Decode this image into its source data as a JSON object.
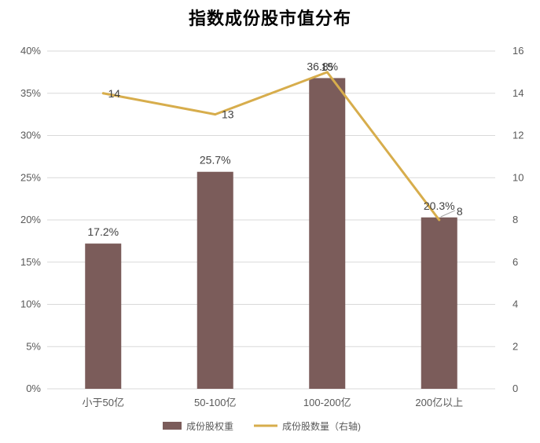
{
  "chart_data": {
    "type": "bar",
    "title": "指数成份股市值分布",
    "categories": [
      "小于50亿",
      "50-100亿",
      "100-200亿",
      "200亿以上"
    ],
    "series": [
      {
        "name": "成份股权重",
        "type": "bar",
        "axis": "left",
        "values": [
          17.2,
          25.7,
          36.8,
          20.3
        ],
        "labels": [
          "17.2%",
          "25.7%",
          "36.8%",
          "20.3%"
        ],
        "color": "#7b5c5a"
      },
      {
        "name": "成份股数量（右轴)",
        "type": "line",
        "axis": "right",
        "values": [
          14,
          13,
          15,
          8
        ],
        "labels": [
          "14",
          "13",
          "15",
          "8"
        ],
        "color": "#d7ad4c"
      }
    ],
    "y_left": {
      "ylim": [
        0,
        40
      ],
      "ticks": [
        "0%",
        "5%",
        "10%",
        "15%",
        "20%",
        "25%",
        "30%",
        "35%",
        "40%"
      ]
    },
    "y_right": {
      "ylim": [
        0,
        16
      ],
      "ticks": [
        "0",
        "2",
        "4",
        "6",
        "8",
        "10",
        "12",
        "14",
        "16"
      ]
    },
    "grid": true,
    "legend": "bottom"
  }
}
